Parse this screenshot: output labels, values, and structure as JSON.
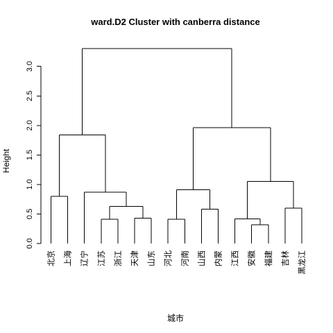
{
  "chart_data": {
    "type": "dendrogram",
    "title": "ward.D2 Cluster with canberra distance",
    "xlabel": "城市",
    "ylabel": "Height",
    "ylim": [
      0,
      3.3
    ],
    "yticks": [
      0.0,
      0.5,
      1.0,
      1.5,
      2.0,
      2.5,
      3.0
    ],
    "ytick_labels": [
      "0.0",
      "0.5",
      "1.0",
      "1.5",
      "2.0",
      "2.5",
      "3.0"
    ],
    "leaves": [
      "北京",
      "上海",
      "辽宁",
      "江苏",
      "浙江",
      "天津",
      "山东",
      "河北",
      "河南",
      "山西",
      "内蒙",
      "江西",
      "安徽",
      "福建",
      "吉林",
      "黑龙江"
    ],
    "merges": [
      {
        "id": "m1",
        "left": "北京",
        "right": "上海",
        "height": 0.8
      },
      {
        "id": "m2",
        "left": "江苏",
        "right": "浙江",
        "height": 0.41
      },
      {
        "id": "m3",
        "left": "天津",
        "right": "山东",
        "height": 0.43
      },
      {
        "id": "m4",
        "left": "m2",
        "right": "m3",
        "height": 0.63
      },
      {
        "id": "m5",
        "left": "辽宁",
        "right": "m4",
        "height": 0.87
      },
      {
        "id": "m6",
        "left": "m1",
        "right": "m5",
        "height": 1.84
      },
      {
        "id": "m7",
        "left": "河北",
        "right": "河南",
        "height": 0.41
      },
      {
        "id": "m8",
        "left": "山西",
        "right": "内蒙",
        "height": 0.58
      },
      {
        "id": "m9",
        "left": "m7",
        "right": "m8",
        "height": 0.91
      },
      {
        "id": "m10",
        "left": "安徽",
        "right": "福建",
        "height": 0.32
      },
      {
        "id": "m11",
        "left": "江西",
        "right": "m10",
        "height": 0.42
      },
      {
        "id": "m12",
        "left": "吉林",
        "right": "黑龙江",
        "height": 0.6
      },
      {
        "id": "m13",
        "left": "m11",
        "right": "m12",
        "height": 1.05
      },
      {
        "id": "m14",
        "left": "m9",
        "right": "m13",
        "height": 1.96
      },
      {
        "id": "m15",
        "left": "m6",
        "right": "m14",
        "height": 3.3
      }
    ]
  }
}
